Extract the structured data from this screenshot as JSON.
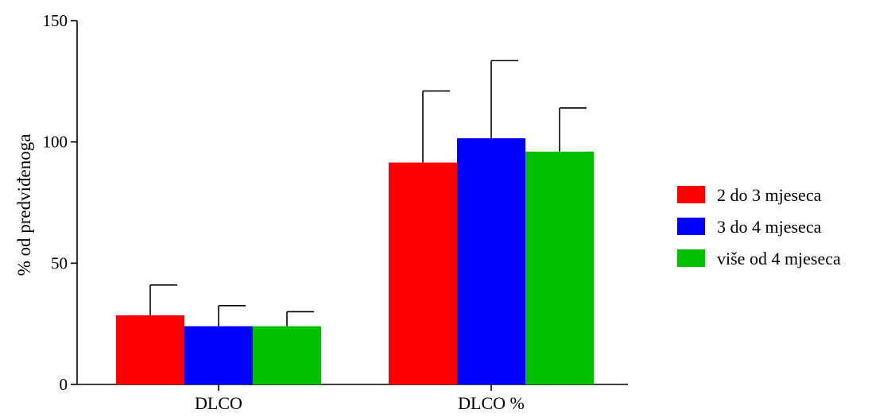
{
  "chart_data": {
    "type": "bar",
    "title": "",
    "xlabel": "",
    "ylabel": "% od predviđenoga",
    "ylim": [
      0,
      150
    ],
    "yticks": [
      0,
      50,
      100,
      150
    ],
    "categories": [
      "DLCO",
      "DLCO %"
    ],
    "series": [
      {
        "name": "2 do 3 mjeseca",
        "color": "#ff0000",
        "values": [
          28.5,
          91.5
        ],
        "error": [
          12.5,
          29.5
        ]
      },
      {
        "name": "3 do 4 mjeseca",
        "color": "#0000ff",
        "values": [
          24,
          101.5
        ],
        "error": [
          8.5,
          32
        ]
      },
      {
        "name": "više od 4 mjeseca",
        "color": "#00c000",
        "values": [
          24,
          96
        ],
        "error": [
          6,
          18
        ]
      }
    ],
    "grid": false,
    "legend_position": "right"
  }
}
